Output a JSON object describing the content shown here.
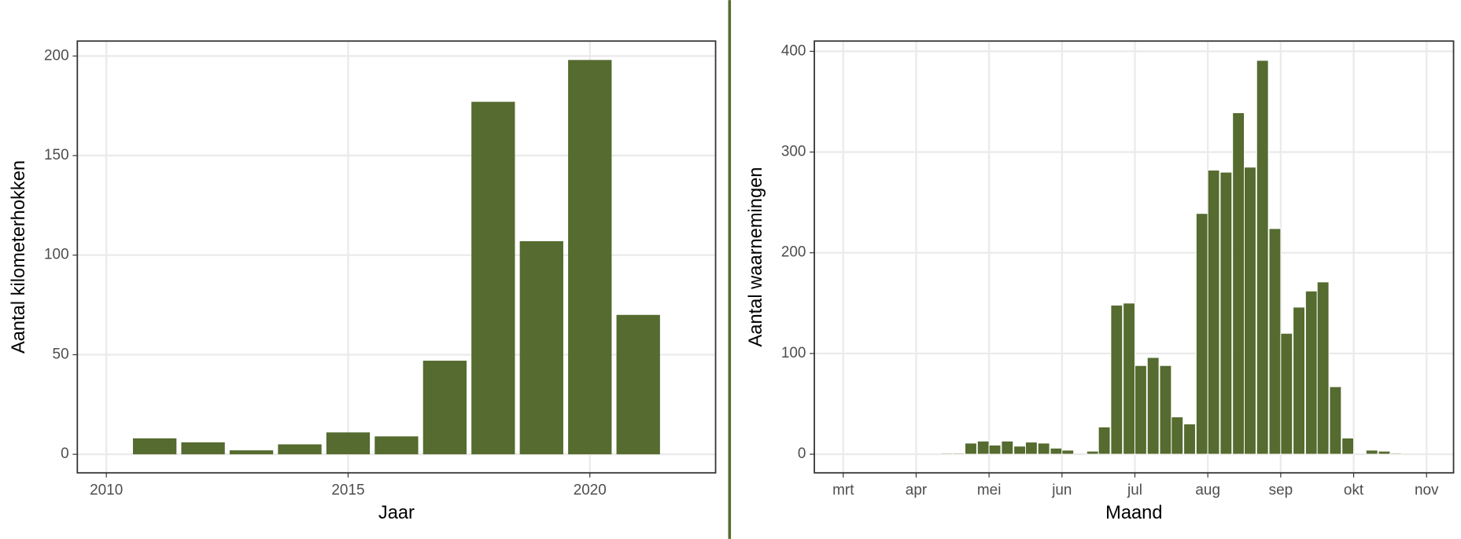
{
  "chart_data": [
    {
      "type": "bar",
      "x_label": "Jaar",
      "y_label": "Aantal kilometerhokken",
      "x": [
        2011,
        2012,
        2013,
        2014,
        2015,
        2016,
        2017,
        2018,
        2019,
        2020,
        2021
      ],
      "values": [
        8,
        6,
        2,
        5,
        11,
        9,
        47,
        177,
        107,
        198,
        70
      ],
      "color": "#556b2f",
      "xlim": [
        2009.4,
        2022.6
      ],
      "xticks": [
        2010,
        2015,
        2020
      ],
      "ylim": [
        -9.3,
        207.5
      ],
      "yticks": [
        0,
        50,
        100,
        150,
        200
      ],
      "grid": true
    },
    {
      "type": "histogram",
      "x_label": "Maand",
      "y_label": "Aantal waarnemingen",
      "x": [
        4.42,
        4.58,
        4.75,
        4.92,
        5.08,
        5.25,
        5.42,
        5.58,
        5.75,
        5.92,
        6.08,
        6.25,
        6.42,
        6.58,
        6.75,
        6.92,
        7.08,
        7.25,
        7.42,
        7.58,
        7.75,
        7.92,
        8.08,
        8.25,
        8.42,
        8.58,
        8.75,
        8.92,
        9.08,
        9.25,
        9.42,
        9.58,
        9.75,
        9.92,
        10.08,
        10.25,
        10.42,
        10.58
      ],
      "values": [
        1,
        1,
        11,
        13,
        9,
        13,
        8,
        12,
        11,
        6,
        4,
        0,
        3,
        27,
        148,
        150,
        88,
        96,
        88,
        37,
        30,
        239,
        282,
        280,
        339,
        285,
        391,
        224,
        120,
        146,
        162,
        171,
        67,
        16,
        0,
        4,
        3,
        1
      ],
      "color": "#556b2f",
      "xlim": [
        2.604,
        11.37
      ],
      "xticks": [
        {
          "value": 3,
          "label": "mrt"
        },
        {
          "value": 4,
          "label": "apr"
        },
        {
          "value": 5,
          "label": "mei"
        },
        {
          "value": 6,
          "label": "jun"
        },
        {
          "value": 7,
          "label": "jul"
        },
        {
          "value": 8,
          "label": "aug"
        },
        {
          "value": 9,
          "label": "sep"
        },
        {
          "value": 10,
          "label": "okt"
        },
        {
          "value": 11,
          "label": "nov"
        }
      ],
      "ylim": [
        -18.5,
        410.2
      ],
      "yticks": [
        0,
        100,
        200,
        300,
        400
      ],
      "grid": true
    }
  ]
}
